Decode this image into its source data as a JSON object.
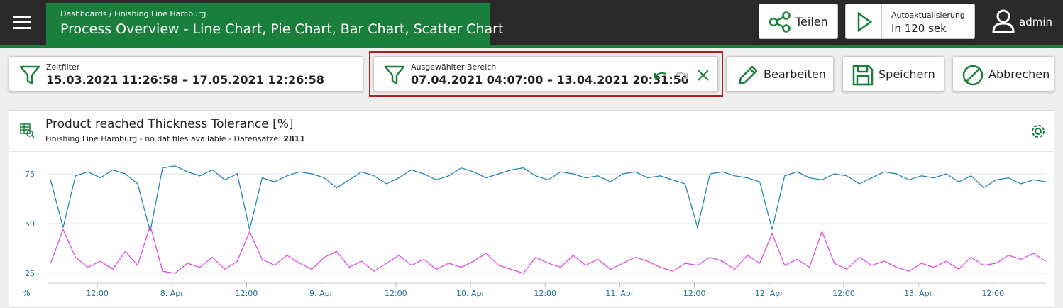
{
  "header": {
    "breadcrumb": "Dashboards / Finishing Line Hamburg",
    "title": "Process Overview - Line Chart, Pie Chart, Bar Chart, Scatter Chart",
    "share": "Teilen",
    "auto_refresh_label": "Autoaktualisierung",
    "auto_refresh_value": "In 120 sek",
    "user": "admin"
  },
  "filters": {
    "time_label": "Zeitfilter",
    "time_range": "15.03.2021 11:26:58 – 17.05.2021 12:26:58",
    "selection_label": "Ausgewählter Bereich",
    "selection_range": "07.04.2021 04:07:00 – 13.04.2021 20:31:50"
  },
  "actions": {
    "edit": "Bearbeiten",
    "save": "Speichern",
    "cancel": "Abbrechen"
  },
  "chart_data": {
    "type": "line",
    "title": "Product reached Thickness Tolerance [%]",
    "subtitle": "Finishing Line Hamburg - no dat files available - Datensätze:",
    "record_count": 2811,
    "ylabel": "%",
    "x": [
      4.5,
      6.5,
      8.5,
      10.5,
      12.5,
      14.5,
      16.5,
      18.5,
      20.5,
      22.5,
      24.5,
      26.5,
      28.5,
      30.5,
      32.5,
      34.5,
      36.5,
      38.5,
      40.5,
      42.5,
      44.5,
      46.5,
      48.5,
      50.5,
      52.5,
      54.5,
      56.5,
      58.5,
      60.5,
      62.5,
      64.5,
      66.5,
      68.5,
      70.5,
      72.5,
      74.5,
      76.5,
      78.5,
      80.5,
      82.5,
      84.5,
      86.5,
      88.5,
      90.5,
      92.5,
      94.5,
      96.5,
      98.5,
      100.5,
      102.5,
      104.5,
      106.5,
      108.5,
      110.5,
      112.5,
      114.5,
      116.5,
      118.5,
      120.5,
      122.5,
      124.5,
      126.5,
      128.5,
      130.5,
      132.5,
      134.5,
      136.5,
      138.5,
      140.5,
      142.5,
      144.5,
      146.5,
      148.5,
      150.5,
      152.5,
      154.5,
      156.5,
      158.5,
      160.5,
      162.5,
      164.5
    ],
    "series": [
      {
        "color": "#1580b0",
        "values": [
          72,
          48,
          74,
          76,
          73,
          77,
          75,
          70,
          46,
          78,
          79,
          76,
          74,
          77,
          72,
          75,
          47,
          73,
          71,
          74,
          76,
          75,
          73,
          68,
          72,
          76,
          74,
          70,
          73,
          77,
          75,
          72,
          74,
          78,
          76,
          73,
          75,
          77,
          78,
          74,
          72,
          76,
          75,
          73,
          74,
          71,
          75,
          76,
          73,
          74,
          72,
          70,
          48,
          75,
          76,
          74,
          73,
          71,
          47,
          74,
          76,
          73,
          72,
          75,
          74,
          70,
          73,
          76,
          75,
          72,
          74,
          73,
          75,
          71,
          74,
          68,
          72,
          73,
          70,
          72,
          71
        ]
      },
      {
        "color": "#e040e0",
        "values": [
          30,
          47,
          33,
          28,
          31,
          27,
          36,
          29,
          49,
          26,
          25,
          30,
          28,
          33,
          27,
          31,
          46,
          32,
          29,
          34,
          30,
          27,
          33,
          36,
          28,
          31,
          26,
          30,
          34,
          29,
          32,
          27,
          30,
          28,
          31,
          35,
          29,
          27,
          25,
          33,
          30,
          28,
          34,
          29,
          32,
          27,
          30,
          33,
          31,
          28,
          26,
          30,
          29,
          33,
          31,
          27,
          34,
          30,
          45,
          29,
          32,
          28,
          46,
          30,
          27,
          33,
          29,
          31,
          28,
          26,
          30,
          28,
          31,
          27,
          33,
          29,
          30,
          34,
          32,
          35,
          31
        ]
      }
    ],
    "xlim": [
      4.12,
      164.52
    ],
    "ylim": [
      20,
      80
    ],
    "yticks": [
      25,
      50,
      75
    ],
    "xticks": [
      {
        "value": 12,
        "label": "12:00"
      },
      {
        "value": 24,
        "label": "8. Apr"
      },
      {
        "value": 36,
        "label": "12:00"
      },
      {
        "value": 48,
        "label": "9. Apr"
      },
      {
        "value": 60,
        "label": "12:00"
      },
      {
        "value": 72,
        "label": "10. Apr"
      },
      {
        "value": 84,
        "label": "12:00"
      },
      {
        "value": 96,
        "label": "11. Apr"
      },
      {
        "value": 108,
        "label": "12:00"
      },
      {
        "value": 120,
        "label": "12. Apr"
      },
      {
        "value": 132,
        "label": "12:00"
      },
      {
        "value": 144,
        "label": "13. Apr"
      },
      {
        "value": 156,
        "label": "12:00"
      }
    ],
    "grid": true
  }
}
